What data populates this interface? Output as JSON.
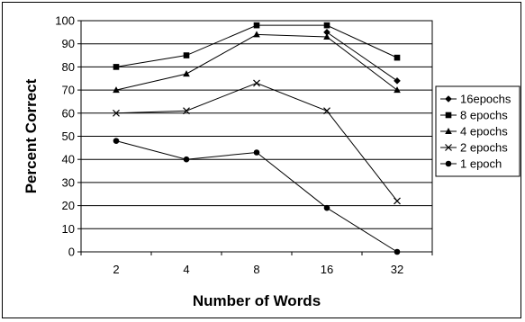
{
  "chart_data": {
    "type": "line",
    "title": "",
    "xlabel": "Number of Words",
    "ylabel": "Percent Correct",
    "categories": [
      "2",
      "4",
      "8",
      "16",
      "32"
    ],
    "ylim": [
      0,
      100
    ],
    "yticks": [
      0,
      10,
      20,
      30,
      40,
      50,
      60,
      70,
      80,
      90,
      100
    ],
    "grid": "horizontal",
    "legend_position": "right",
    "series": [
      {
        "name": "16epochs",
        "marker": "diamond",
        "color": "#000000",
        "values": [
          null,
          null,
          null,
          95,
          74
        ]
      },
      {
        "name": "8 epochs",
        "marker": "square",
        "color": "#000000",
        "values": [
          80,
          85,
          98,
          98,
          84
        ]
      },
      {
        "name": "4 epochs",
        "marker": "triangle",
        "color": "#000000",
        "values": [
          70,
          77,
          94,
          93,
          70
        ]
      },
      {
        "name": "2 epochs",
        "marker": "x",
        "color": "#000000",
        "values": [
          60,
          61,
          73,
          61,
          22
        ]
      },
      {
        "name": "1 epoch",
        "marker": "circle",
        "color": "#000000",
        "values": [
          48,
          40,
          43,
          19,
          0
        ]
      }
    ]
  }
}
